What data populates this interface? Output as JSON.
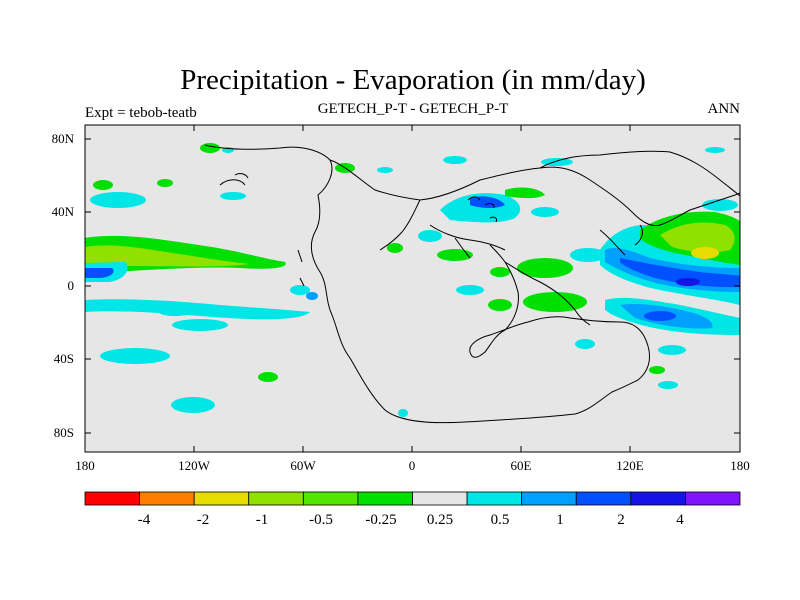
{
  "title": "Precipitation - Evaporation (in mm/day)",
  "subtitle_left": "Expt = tebob-teatb",
  "subtitle_center": "GETECH_P-T - GETECH_P-T",
  "subtitle_right": "ANN",
  "axes": {
    "x_ticks": [
      "180",
      "120W",
      "60W",
      "0",
      "60E",
      "120E",
      "180"
    ],
    "y_ticks": [
      "80N",
      "40N",
      "0",
      "40S",
      "80S"
    ]
  },
  "colors": {
    "background_field": "#e6e6e6",
    "green": "#00e000",
    "light_green": "#90e000",
    "yellow": "#e6dc00",
    "cyan": "#00e6e6",
    "sky": "#00a0ff",
    "blue": "#0050ff",
    "dark_blue": "#1414e6"
  },
  "colorbar": {
    "colors": [
      "#ff0000",
      "#ff8000",
      "#e6dc00",
      "#90e000",
      "#50e600",
      "#00e000",
      "#e6e6e6",
      "#00e6e6",
      "#00a0ff",
      "#0050ff",
      "#1414e6",
      "#8014ff"
    ],
    "labels": [
      "-4",
      "-2",
      "-1",
      "-0.5",
      "-0.25",
      "0.25",
      "0.5",
      "1",
      "2",
      "4"
    ]
  }
}
